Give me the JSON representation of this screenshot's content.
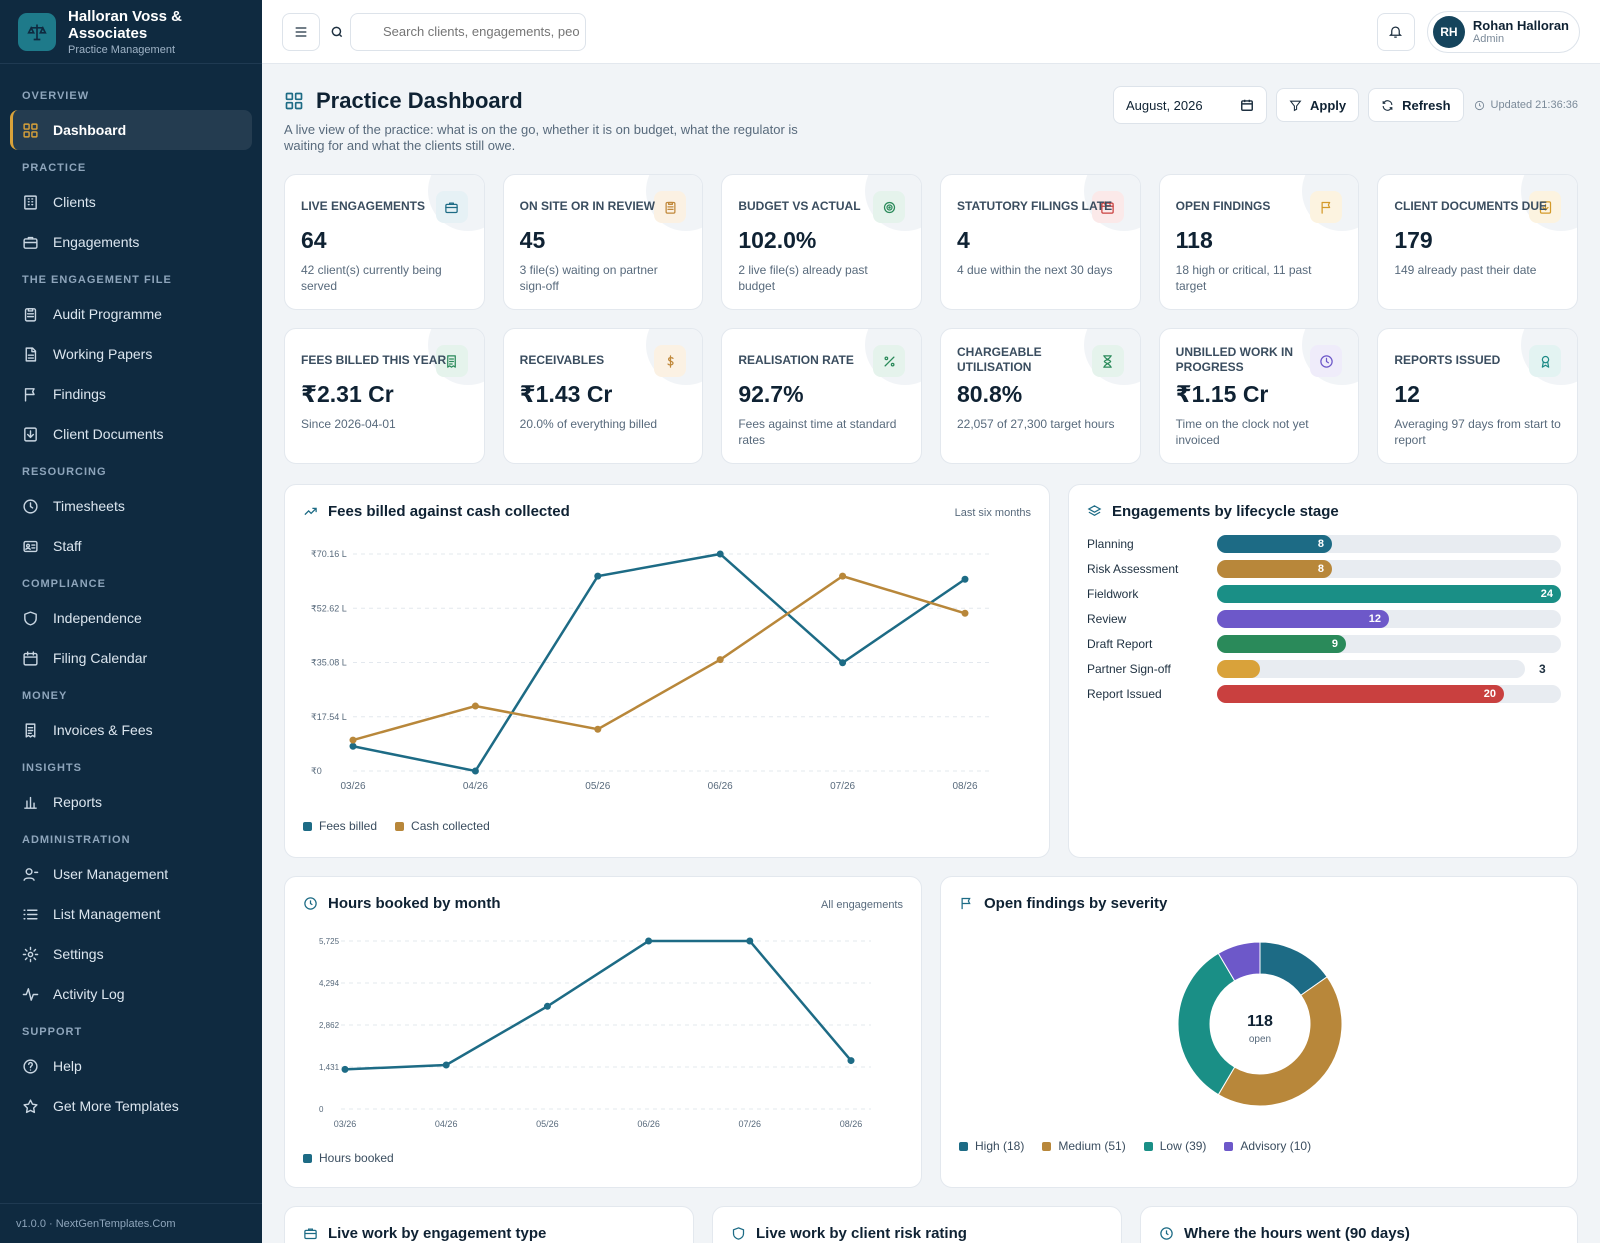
{
  "brand": {
    "name": "Halloran Voss & Associates",
    "sub": "Practice Management"
  },
  "sidebar": {
    "sections": [
      {
        "title": "OVERVIEW",
        "items": [
          {
            "label": "Dashboard",
            "icon": "grid-icon",
            "active": true
          }
        ]
      },
      {
        "title": "PRACTICE",
        "items": [
          {
            "label": "Clients",
            "icon": "building-icon"
          },
          {
            "label": "Engagements",
            "icon": "briefcase-icon"
          }
        ]
      },
      {
        "title": "THE ENGAGEMENT FILE",
        "items": [
          {
            "label": "Audit Programme",
            "icon": "clipboard-icon"
          },
          {
            "label": "Working Papers",
            "icon": "file-icon"
          },
          {
            "label": "Findings",
            "icon": "flag-icon"
          },
          {
            "label": "Client Documents",
            "icon": "download-doc-icon"
          }
        ]
      },
      {
        "title": "RESOURCING",
        "items": [
          {
            "label": "Timesheets",
            "icon": "clock-icon"
          },
          {
            "label": "Staff",
            "icon": "id-card-icon"
          }
        ]
      },
      {
        "title": "COMPLIANCE",
        "items": [
          {
            "label": "Independence",
            "icon": "shield-icon"
          },
          {
            "label": "Filing Calendar",
            "icon": "calendar-icon"
          }
        ]
      },
      {
        "title": "MONEY",
        "items": [
          {
            "label": "Invoices & Fees",
            "icon": "receipt-icon"
          }
        ]
      },
      {
        "title": "INSIGHTS",
        "items": [
          {
            "label": "Reports",
            "icon": "bar-chart-icon"
          }
        ]
      },
      {
        "title": "ADMINISTRATION",
        "items": [
          {
            "label": "User Management",
            "icon": "user-icon"
          },
          {
            "label": "List Management",
            "icon": "list-icon"
          },
          {
            "label": "Settings",
            "icon": "gear-icon"
          },
          {
            "label": "Activity Log",
            "icon": "activity-icon"
          }
        ]
      },
      {
        "title": "SUPPORT",
        "items": [
          {
            "label": "Help",
            "icon": "help-icon"
          },
          {
            "label": "Get More Templates",
            "icon": "star-icon"
          }
        ]
      }
    ],
    "footer": "v1.0.0 · NextGenTemplates.Com"
  },
  "topbar": {
    "search_placeholder": "Search clients, engagements, peo",
    "user": {
      "initials": "RH",
      "name": "Rohan Halloran",
      "role": "Admin"
    }
  },
  "page": {
    "title": "Practice Dashboard",
    "description": "A live view of the practice: what is on the go, whether it is on budget, what the regulator is waiting for and what the clients still owe.",
    "date_value": "August, 2026",
    "apply_label": "Apply",
    "refresh_label": "Refresh",
    "updated": "Updated 21:36:36"
  },
  "kpis": [
    {
      "label": "LIVE ENGAGEMENTS",
      "value": "64",
      "sub": "42 client(s) currently being served",
      "icon": "briefcase-icon",
      "color": "#1d6b85",
      "bg": "#e6f1f5"
    },
    {
      "label": "ON SITE OR IN REVIEW",
      "value": "45",
      "sub": "3 file(s) waiting on partner sign-off",
      "icon": "clipboard-icon",
      "color": "#c0883a",
      "bg": "#fbf1e3"
    },
    {
      "label": "BUDGET VS ACTUAL",
      "value": "102.0%",
      "sub": "2 live file(s) already past budget",
      "icon": "target-icon",
      "color": "#2a8a5a",
      "bg": "#e5f3ec"
    },
    {
      "label": "STATUTORY FILINGS LATE",
      "value": "4",
      "sub": "4 due within the next 30 days",
      "icon": "calendar-icon",
      "color": "#c9403f",
      "bg": "#fbe9e9"
    },
    {
      "label": "OPEN FINDINGS",
      "value": "118",
      "sub": "18 high or critical, 11 past target",
      "icon": "flag-icon",
      "color": "#d49a2a",
      "bg": "#fcf3e0"
    },
    {
      "label": "CLIENT DOCUMENTS DUE",
      "value": "179",
      "sub": "149 already past their date",
      "icon": "download-doc-icon",
      "color": "#d49a2a",
      "bg": "#fcf3e0"
    },
    {
      "label": "FEES BILLED THIS YEAR",
      "value": "₹2.31 Cr",
      "sub": "Since 2026-04-01",
      "icon": "receipt-icon",
      "color": "#2a8a5a",
      "bg": "#e5f3ec"
    },
    {
      "label": "RECEIVABLES",
      "value": "₹1.43 Cr",
      "sub": "20.0% of everything billed",
      "icon": "dollar-icon",
      "color": "#c0883a",
      "bg": "#fbf1e3"
    },
    {
      "label": "REALISATION RATE",
      "value": "92.7%",
      "sub": "Fees against time at standard rates",
      "icon": "percent-icon",
      "color": "#2a8a5a",
      "bg": "#e5f3ec"
    },
    {
      "label": "CHARGEABLE UTILISATION",
      "value": "80.8%",
      "sub": "22,057 of 27,300 target hours",
      "icon": "hourglass-icon",
      "color": "#2a8a5a",
      "bg": "#e5f3ec"
    },
    {
      "label": "UNBILLED WORK IN PROGRESS",
      "value": "₹1.15 Cr",
      "sub": "Time on the clock not yet invoiced",
      "icon": "clock-icon",
      "color": "#6d58c9",
      "bg": "#efecfa"
    },
    {
      "label": "REPORTS ISSUED",
      "value": "12",
      "sub": "Averaging 97 days from start to report",
      "icon": "award-icon",
      "color": "#1d8a86",
      "bg": "#e3f3f2"
    }
  ],
  "fees_card": {
    "title": "Fees billed against cash collected",
    "note": "Last six months"
  },
  "hours_card": {
    "title": "Hours booked by month",
    "note": "All engagements"
  },
  "stages_card": {
    "title": "Engagements by lifecycle stage",
    "max": 24,
    "stages": [
      {
        "name": "Planning",
        "value": 8,
        "color": "#1d6b85"
      },
      {
        "name": "Risk Assessment",
        "value": 8,
        "color": "#b8873a"
      },
      {
        "name": "Fieldwork",
        "value": 24,
        "color": "#1a8f86"
      },
      {
        "name": "Review",
        "value": 12,
        "color": "#6d58c9"
      },
      {
        "name": "Draft Report",
        "value": 9,
        "color": "#2a8a5a"
      },
      {
        "name": "Partner Sign-off",
        "value": 3,
        "color": "#d9a23a"
      },
      {
        "name": "Report Issued",
        "value": 20,
        "color": "#c9403f"
      }
    ]
  },
  "severity_card": {
    "title": "Open findings by severity",
    "center_value": "118",
    "center_label": "open",
    "legend": [
      "High (18)",
      "Medium (51)",
      "Low (39)",
      "Advisory (10)"
    ]
  },
  "bottom_cards": [
    "Live work by engagement type",
    "Live work by client risk rating",
    "Where the hours went (90 days)"
  ],
  "chart_data": [
    {
      "type": "line",
      "title": "Fees billed against cash collected",
      "categories": [
        "03/26",
        "04/26",
        "05/26",
        "06/26",
        "07/26",
        "08/26"
      ],
      "yticks": [
        "₹0",
        "₹17.54 L",
        "₹35.08 L",
        "₹52.62 L",
        "₹70.16 L"
      ],
      "ylim": [
        0,
        70.16
      ],
      "series": [
        {
          "name": "Fees billed",
          "color": "#1d6b85",
          "values": [
            8,
            0,
            63,
            70.16,
            35,
            62
          ]
        },
        {
          "name": "Cash collected",
          "color": "#b8873a",
          "values": [
            10,
            21,
            13.5,
            36,
            63,
            51
          ]
        }
      ]
    },
    {
      "type": "line",
      "title": "Hours booked by month",
      "categories": [
        "03/26",
        "04/26",
        "05/26",
        "06/26",
        "07/26",
        "08/26"
      ],
      "yticks": [
        "0",
        "1,431",
        "2,862",
        "4,294",
        "5,725"
      ],
      "ylim": [
        0,
        5725
      ],
      "series": [
        {
          "name": "Hours booked",
          "color": "#1d6b85",
          "values": [
            1350,
            1500,
            3500,
            5725,
            5725,
            1650
          ]
        }
      ]
    },
    {
      "type": "pie",
      "title": "Open findings by severity",
      "categories": [
        "High",
        "Medium",
        "Low",
        "Advisory"
      ],
      "values": [
        18,
        51,
        39,
        10
      ],
      "colors": [
        "#1d6b85",
        "#b8873a",
        "#1a8f86",
        "#6d58c9"
      ]
    }
  ]
}
